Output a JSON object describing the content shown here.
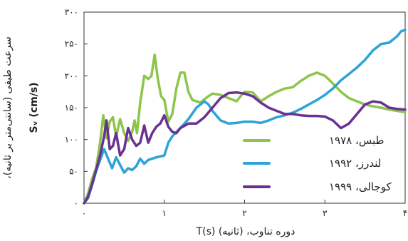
{
  "chart_data": {
    "type": "line",
    "xlabel": "T(s)  دوره تناوب، (ثانیه)",
    "ylabel_fa": "سرعت طیفی (سانتی‌متر بر ثانیه)،",
    "ylabel_en": "Sᵥ (cm/s)",
    "xlim": [
      0,
      4
    ],
    "ylim": [
      0,
      300
    ],
    "x_ticks": [
      {
        "value": 0,
        "label": "۰"
      },
      {
        "value": 1,
        "label": "۱"
      },
      {
        "value": 2,
        "label": "۲"
      },
      {
        "value": 3,
        "label": "۳"
      },
      {
        "value": 4,
        "label": "۴"
      }
    ],
    "y_ticks": [
      {
        "value": 0,
        "label": "۰"
      },
      {
        "value": 50,
        "label": "۵۰"
      },
      {
        "value": 100,
        "label": "۱۰۰"
      },
      {
        "value": 150,
        "label": "۱۵۰"
      },
      {
        "value": 200,
        "label": "۲۰۰"
      },
      {
        "value": 250,
        "label": "۲۵۰"
      },
      {
        "value": 300,
        "label": "۳۰۰"
      }
    ],
    "grid": false,
    "legend_position": "bottom-right",
    "series": [
      {
        "name": "طبس، ۱۹۷۸",
        "color": "#8DC54B",
        "points": [
          [
            0,
            0
          ],
          [
            0.05,
            15
          ],
          [
            0.1,
            38
          ],
          [
            0.15,
            55
          ],
          [
            0.2,
            95
          ],
          [
            0.24,
            138
          ],
          [
            0.28,
            102
          ],
          [
            0.32,
            128
          ],
          [
            0.36,
            135
          ],
          [
            0.4,
            105
          ],
          [
            0.45,
            132
          ],
          [
            0.5,
            110
          ],
          [
            0.55,
            98
          ],
          [
            0.6,
            112
          ],
          [
            0.63,
            130
          ],
          [
            0.66,
            110
          ],
          [
            0.7,
            158
          ],
          [
            0.75,
            200
          ],
          [
            0.8,
            195
          ],
          [
            0.84,
            200
          ],
          [
            0.88,
            233
          ],
          [
            0.92,
            195
          ],
          [
            0.96,
            168
          ],
          [
            1.0,
            162
          ],
          [
            1.05,
            128
          ],
          [
            1.1,
            140
          ],
          [
            1.15,
            180
          ],
          [
            1.2,
            205
          ],
          [
            1.25,
            205
          ],
          [
            1.3,
            175
          ],
          [
            1.35,
            162
          ],
          [
            1.4,
            160
          ],
          [
            1.45,
            158
          ],
          [
            1.5,
            163
          ],
          [
            1.55,
            168
          ],
          [
            1.6,
            172
          ],
          [
            1.7,
            170
          ],
          [
            1.8,
            165
          ],
          [
            1.9,
            160
          ],
          [
            1.95,
            168
          ],
          [
            2.0,
            175
          ],
          [
            2.1,
            174
          ],
          [
            2.2,
            160
          ],
          [
            2.3,
            168
          ],
          [
            2.4,
            175
          ],
          [
            2.5,
            180
          ],
          [
            2.6,
            182
          ],
          [
            2.7,
            192
          ],
          [
            2.8,
            200
          ],
          [
            2.9,
            205
          ],
          [
            3.0,
            200
          ],
          [
            3.1,
            188
          ],
          [
            3.2,
            175
          ],
          [
            3.3,
            165
          ],
          [
            3.4,
            160
          ],
          [
            3.5,
            155
          ],
          [
            3.6,
            152
          ],
          [
            3.7,
            150
          ],
          [
            3.8,
            147
          ],
          [
            3.9,
            145
          ],
          [
            4.0,
            143
          ]
        ]
      },
      {
        "name": "لندرز، ۱۹۹۲",
        "color": "#2EA3D6",
        "points": [
          [
            0,
            0
          ],
          [
            0.05,
            8
          ],
          [
            0.1,
            28
          ],
          [
            0.15,
            50
          ],
          [
            0.2,
            68
          ],
          [
            0.25,
            85
          ],
          [
            0.3,
            70
          ],
          [
            0.35,
            55
          ],
          [
            0.4,
            72
          ],
          [
            0.45,
            60
          ],
          [
            0.5,
            48
          ],
          [
            0.55,
            55
          ],
          [
            0.6,
            52
          ],
          [
            0.65,
            58
          ],
          [
            0.7,
            70
          ],
          [
            0.75,
            62
          ],
          [
            0.8,
            68
          ],
          [
            0.9,
            72
          ],
          [
            1.0,
            75
          ],
          [
            1.05,
            95
          ],
          [
            1.1,
            105
          ],
          [
            1.2,
            118
          ],
          [
            1.3,
            132
          ],
          [
            1.4,
            150
          ],
          [
            1.5,
            160
          ],
          [
            1.55,
            155
          ],
          [
            1.6,
            145
          ],
          [
            1.7,
            130
          ],
          [
            1.8,
            125
          ],
          [
            1.9,
            126
          ],
          [
            2.0,
            128
          ],
          [
            2.1,
            128
          ],
          [
            2.2,
            126
          ],
          [
            2.3,
            130
          ],
          [
            2.4,
            135
          ],
          [
            2.5,
            138
          ],
          [
            2.6,
            142
          ],
          [
            2.7,
            148
          ],
          [
            2.8,
            155
          ],
          [
            2.9,
            162
          ],
          [
            3.0,
            170
          ],
          [
            3.1,
            180
          ],
          [
            3.2,
            193
          ],
          [
            3.3,
            203
          ],
          [
            3.4,
            213
          ],
          [
            3.5,
            225
          ],
          [
            3.6,
            240
          ],
          [
            3.7,
            250
          ],
          [
            3.8,
            252
          ],
          [
            3.9,
            262
          ],
          [
            3.95,
            270
          ],
          [
            4.0,
            272
          ]
        ]
      },
      {
        "name": "کوجالی، ۱۹۹۹",
        "color": "#6A3092",
        "points": [
          [
            0,
            0
          ],
          [
            0.05,
            10
          ],
          [
            0.1,
            30
          ],
          [
            0.15,
            52
          ],
          [
            0.2,
            75
          ],
          [
            0.25,
            105
          ],
          [
            0.28,
            130
          ],
          [
            0.32,
            85
          ],
          [
            0.36,
            90
          ],
          [
            0.4,
            110
          ],
          [
            0.45,
            75
          ],
          [
            0.5,
            85
          ],
          [
            0.55,
            118
          ],
          [
            0.6,
            100
          ],
          [
            0.65,
            90
          ],
          [
            0.7,
            95
          ],
          [
            0.75,
            122
          ],
          [
            0.8,
            95
          ],
          [
            0.85,
            110
          ],
          [
            0.9,
            120
          ],
          [
            0.95,
            125
          ],
          [
            1.0,
            138
          ],
          [
            1.05,
            120
          ],
          [
            1.1,
            112
          ],
          [
            1.15,
            110
          ],
          [
            1.2,
            118
          ],
          [
            1.3,
            125
          ],
          [
            1.4,
            125
          ],
          [
            1.5,
            135
          ],
          [
            1.6,
            150
          ],
          [
            1.7,
            165
          ],
          [
            1.8,
            173
          ],
          [
            1.9,
            174
          ],
          [
            2.0,
            172
          ],
          [
            2.1,
            168
          ],
          [
            2.2,
            158
          ],
          [
            2.3,
            150
          ],
          [
            2.4,
            145
          ],
          [
            2.5,
            140
          ],
          [
            2.6,
            140
          ],
          [
            2.7,
            138
          ],
          [
            2.8,
            137
          ],
          [
            2.9,
            137
          ],
          [
            3.0,
            136
          ],
          [
            3.1,
            130
          ],
          [
            3.2,
            118
          ],
          [
            3.3,
            125
          ],
          [
            3.4,
            140
          ],
          [
            3.5,
            155
          ],
          [
            3.6,
            160
          ],
          [
            3.7,
            158
          ],
          [
            3.8,
            150
          ],
          [
            3.9,
            148
          ],
          [
            4.0,
            147
          ]
        ]
      }
    ]
  }
}
